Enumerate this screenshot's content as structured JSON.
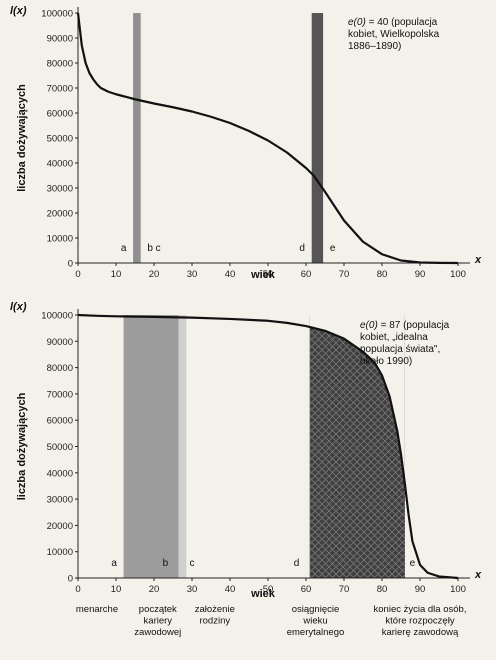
{
  "chart_data": [
    {
      "type": "line",
      "ylabel_fn": "l(x)",
      "ylabel": "liczba dożywających",
      "xlabel": "wiek",
      "x_axis_symbol": "x",
      "xlim": [
        0,
        100
      ],
      "ylim": [
        0,
        100000
      ],
      "x_ticks": [
        "0",
        "10",
        "20",
        "30",
        "40",
        "50",
        "60",
        "70",
        "80",
        "90",
        "100"
      ],
      "y_ticks": [
        "0",
        "10000",
        "20000",
        "30000",
        "40000",
        "50000",
        "60000",
        "70000",
        "80000",
        "90000",
        "100000"
      ],
      "series": [
        {
          "x": [
            0,
            1,
            2,
            3,
            4,
            5,
            6,
            8,
            10,
            15,
            20,
            25,
            30,
            35,
            40,
            45,
            50,
            55,
            60,
            62,
            65,
            70,
            75,
            80,
            85,
            90,
            95,
            100
          ],
          "y": [
            100000,
            87000,
            80000,
            76000,
            73500,
            71500,
            70000,
            68500,
            67500,
            65500,
            63800,
            62300,
            60600,
            58500,
            56000,
            52800,
            49000,
            44200,
            38000,
            35000,
            28500,
            17000,
            8500,
            3500,
            1000,
            200,
            50,
            0
          ]
        }
      ],
      "bands": [
        {
          "x0": 14.5,
          "x1": 16.5,
          "color": "#8f8f8f",
          "hatch": false
        },
        {
          "x0": 61.5,
          "x1": 64.5,
          "color": "#555555",
          "hatch": false
        }
      ],
      "markers": [
        {
          "label": "a",
          "x": 12
        },
        {
          "label": "b c",
          "x": 20
        },
        {
          "label": "d",
          "x": 59
        },
        {
          "label": "e",
          "x": 67
        }
      ],
      "annotation": {
        "label": "e(0)",
        "lines": [
          "= 40 (populacja",
          "kobiet, Wielkopolska",
          "1886–1890)"
        ]
      }
    },
    {
      "type": "line",
      "ylabel_fn": "l(x)",
      "ylabel": "liczba dożywających",
      "xlabel": "wiek",
      "x_axis_symbol": "x",
      "xlim": [
        0,
        100
      ],
      "ylim": [
        0,
        100000
      ],
      "x_ticks": [
        "0",
        "10",
        "20",
        "30",
        "40",
        "50",
        "60",
        "70",
        "80",
        "90",
        "100"
      ],
      "y_ticks": [
        "0",
        "10000",
        "20000",
        "30000",
        "40000",
        "50000",
        "60000",
        "70000",
        "80000",
        "90000",
        "100000"
      ],
      "series": [
        {
          "x": [
            0,
            5,
            10,
            20,
            30,
            40,
            50,
            55,
            60,
            65,
            70,
            75,
            78,
            80,
            82,
            84,
            85,
            86,
            87,
            88,
            90,
            92,
            95,
            100
          ],
          "y": [
            100000,
            99700,
            99500,
            99300,
            99000,
            98500,
            97800,
            97000,
            95800,
            94000,
            91000,
            86000,
            82000,
            77000,
            69000,
            56000,
            47000,
            36000,
            24000,
            14000,
            5000,
            2000,
            600,
            0
          ]
        }
      ],
      "bands": [
        {
          "x0": 12,
          "x1": 26.5,
          "color": "#9c9c9c",
          "hatch": false
        },
        {
          "x0": 26.5,
          "x1": 28.5,
          "color": "#cfcfcf",
          "hatch": false
        },
        {
          "x0": 61,
          "x1": 86,
          "color": "#3f3f3f",
          "hatch": true
        }
      ],
      "markers": [
        {
          "label": "a",
          "x": 9.5
        },
        {
          "label": "b",
          "x": 23
        },
        {
          "label": "c",
          "x": 30
        },
        {
          "label": "d",
          "x": 57.5
        },
        {
          "label": "e",
          "x": 88
        }
      ],
      "annotation": {
        "label": "e(0)",
        "lines": [
          "= 87 (populacja",
          "kobiet, „idealna",
          "populacja świata\",",
          "około 1990)"
        ]
      },
      "captions": [
        {
          "x": 5,
          "lines": [
            "menarche"
          ]
        },
        {
          "x": 21,
          "lines": [
            "początek",
            "kariery",
            "zawodowej"
          ]
        },
        {
          "x": 36,
          "lines": [
            "założenie",
            "rodziny"
          ]
        },
        {
          "x": 62.5,
          "lines": [
            "osiągnięcie",
            "wieku",
            "emerytalnego"
          ]
        },
        {
          "x": 90,
          "lines": [
            "koniec życia dla osób,",
            "które rozpoczęły",
            "karierę zawodową"
          ]
        }
      ]
    }
  ]
}
